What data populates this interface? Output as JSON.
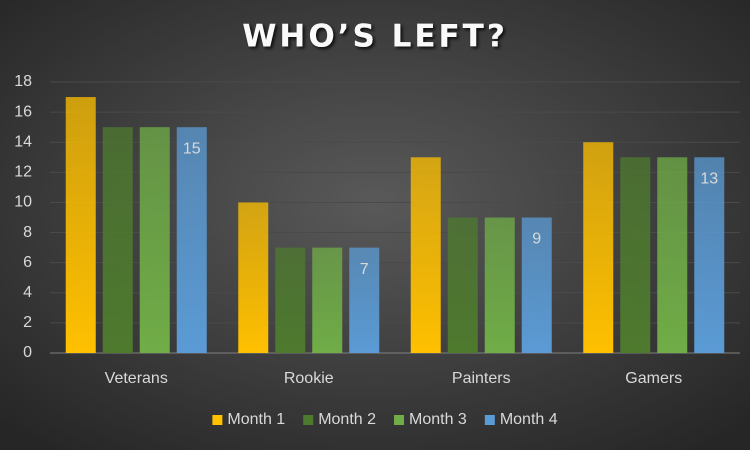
{
  "chart_data": {
    "type": "bar",
    "title": "WHO’S LEFT?",
    "categories": [
      "Veterans",
      "Rookie",
      "Painters",
      "Gamers"
    ],
    "series": [
      {
        "name": "Month 1",
        "color": "#FFC000",
        "values": [
          17,
          10,
          13,
          14
        ]
      },
      {
        "name": "Month 2",
        "color": "#4E7A2E",
        "values": [
          15,
          7,
          9,
          13
        ]
      },
      {
        "name": "Month 3",
        "color": "#70AD47",
        "values": [
          15,
          7,
          9,
          13
        ]
      },
      {
        "name": "Month 4",
        "color": "#5B9BD5",
        "values": [
          15,
          7,
          9,
          13
        ],
        "data_labels": true
      }
    ],
    "ylim": [
      0,
      18
    ],
    "yticks": [
      0,
      2,
      4,
      6,
      8,
      10,
      12,
      14,
      16,
      18
    ],
    "grid": true,
    "legend": "bottom"
  }
}
